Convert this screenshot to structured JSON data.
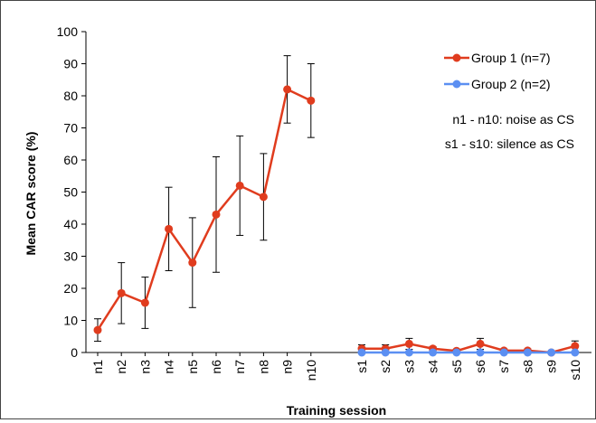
{
  "chart_data": {
    "type": "line",
    "title": "",
    "xlabel": "Training session",
    "ylabel": "Mean CAR score (%)",
    "ylim": [
      0,
      100
    ],
    "yticks": [
      0,
      10,
      20,
      30,
      40,
      50,
      60,
      70,
      80,
      90,
      100
    ],
    "categories": [
      "n1",
      "n2",
      "n3",
      "n4",
      "n5",
      "n6",
      "n7",
      "n8",
      "n9",
      "n10",
      "s1",
      "s2",
      "s3",
      "s4",
      "s5",
      "s6",
      "s7",
      "s8",
      "s9",
      "s10"
    ],
    "grid": false,
    "legend_position": "top-right",
    "series": [
      {
        "name": "Group 1 (n=7)",
        "color": "#e03c1e",
        "segments": [
          {
            "x": [
              "n1",
              "n2",
              "n3",
              "n4",
              "n5",
              "n6",
              "n7",
              "n8",
              "n9",
              "n10"
            ],
            "y": [
              7,
              18.5,
              15.5,
              38.5,
              28,
              43,
              52,
              48.5,
              82,
              78.5
            ],
            "err": [
              3.5,
              9.5,
              8,
              13,
              14,
              18,
              15.5,
              13.5,
              10.5,
              11.5
            ]
          },
          {
            "x": [
              "s1",
              "s2",
              "s3",
              "s4",
              "s5",
              "s6",
              "s7",
              "s8",
              "s9",
              "s10"
            ],
            "y": [
              1.2,
              1.2,
              2.7,
              1.2,
              0.5,
              2.7,
              0.6,
              0.6,
              0,
              2
            ],
            "err": [
              1.2,
              1.2,
              1.7,
              0.6,
              0.5,
              1.7,
              0.5,
              0.5,
              0,
              1.6
            ]
          }
        ]
      },
      {
        "name": "Group 2 (n=2)",
        "color": "#5b8ff2",
        "segments": [
          {
            "x": [
              "s1",
              "s2",
              "s3",
              "s4",
              "s5",
              "s6",
              "s7",
              "s8",
              "s9",
              "s10"
            ],
            "y": [
              0,
              0,
              0,
              0,
              0,
              0,
              0,
              0,
              0,
              0
            ],
            "err": [
              0,
              0,
              0,
              0,
              0,
              0,
              0,
              0,
              0,
              0
            ]
          }
        ]
      }
    ],
    "annotations": [
      "n1 - n10: noise as CS",
      "s1 - s10: silence as CS"
    ]
  }
}
